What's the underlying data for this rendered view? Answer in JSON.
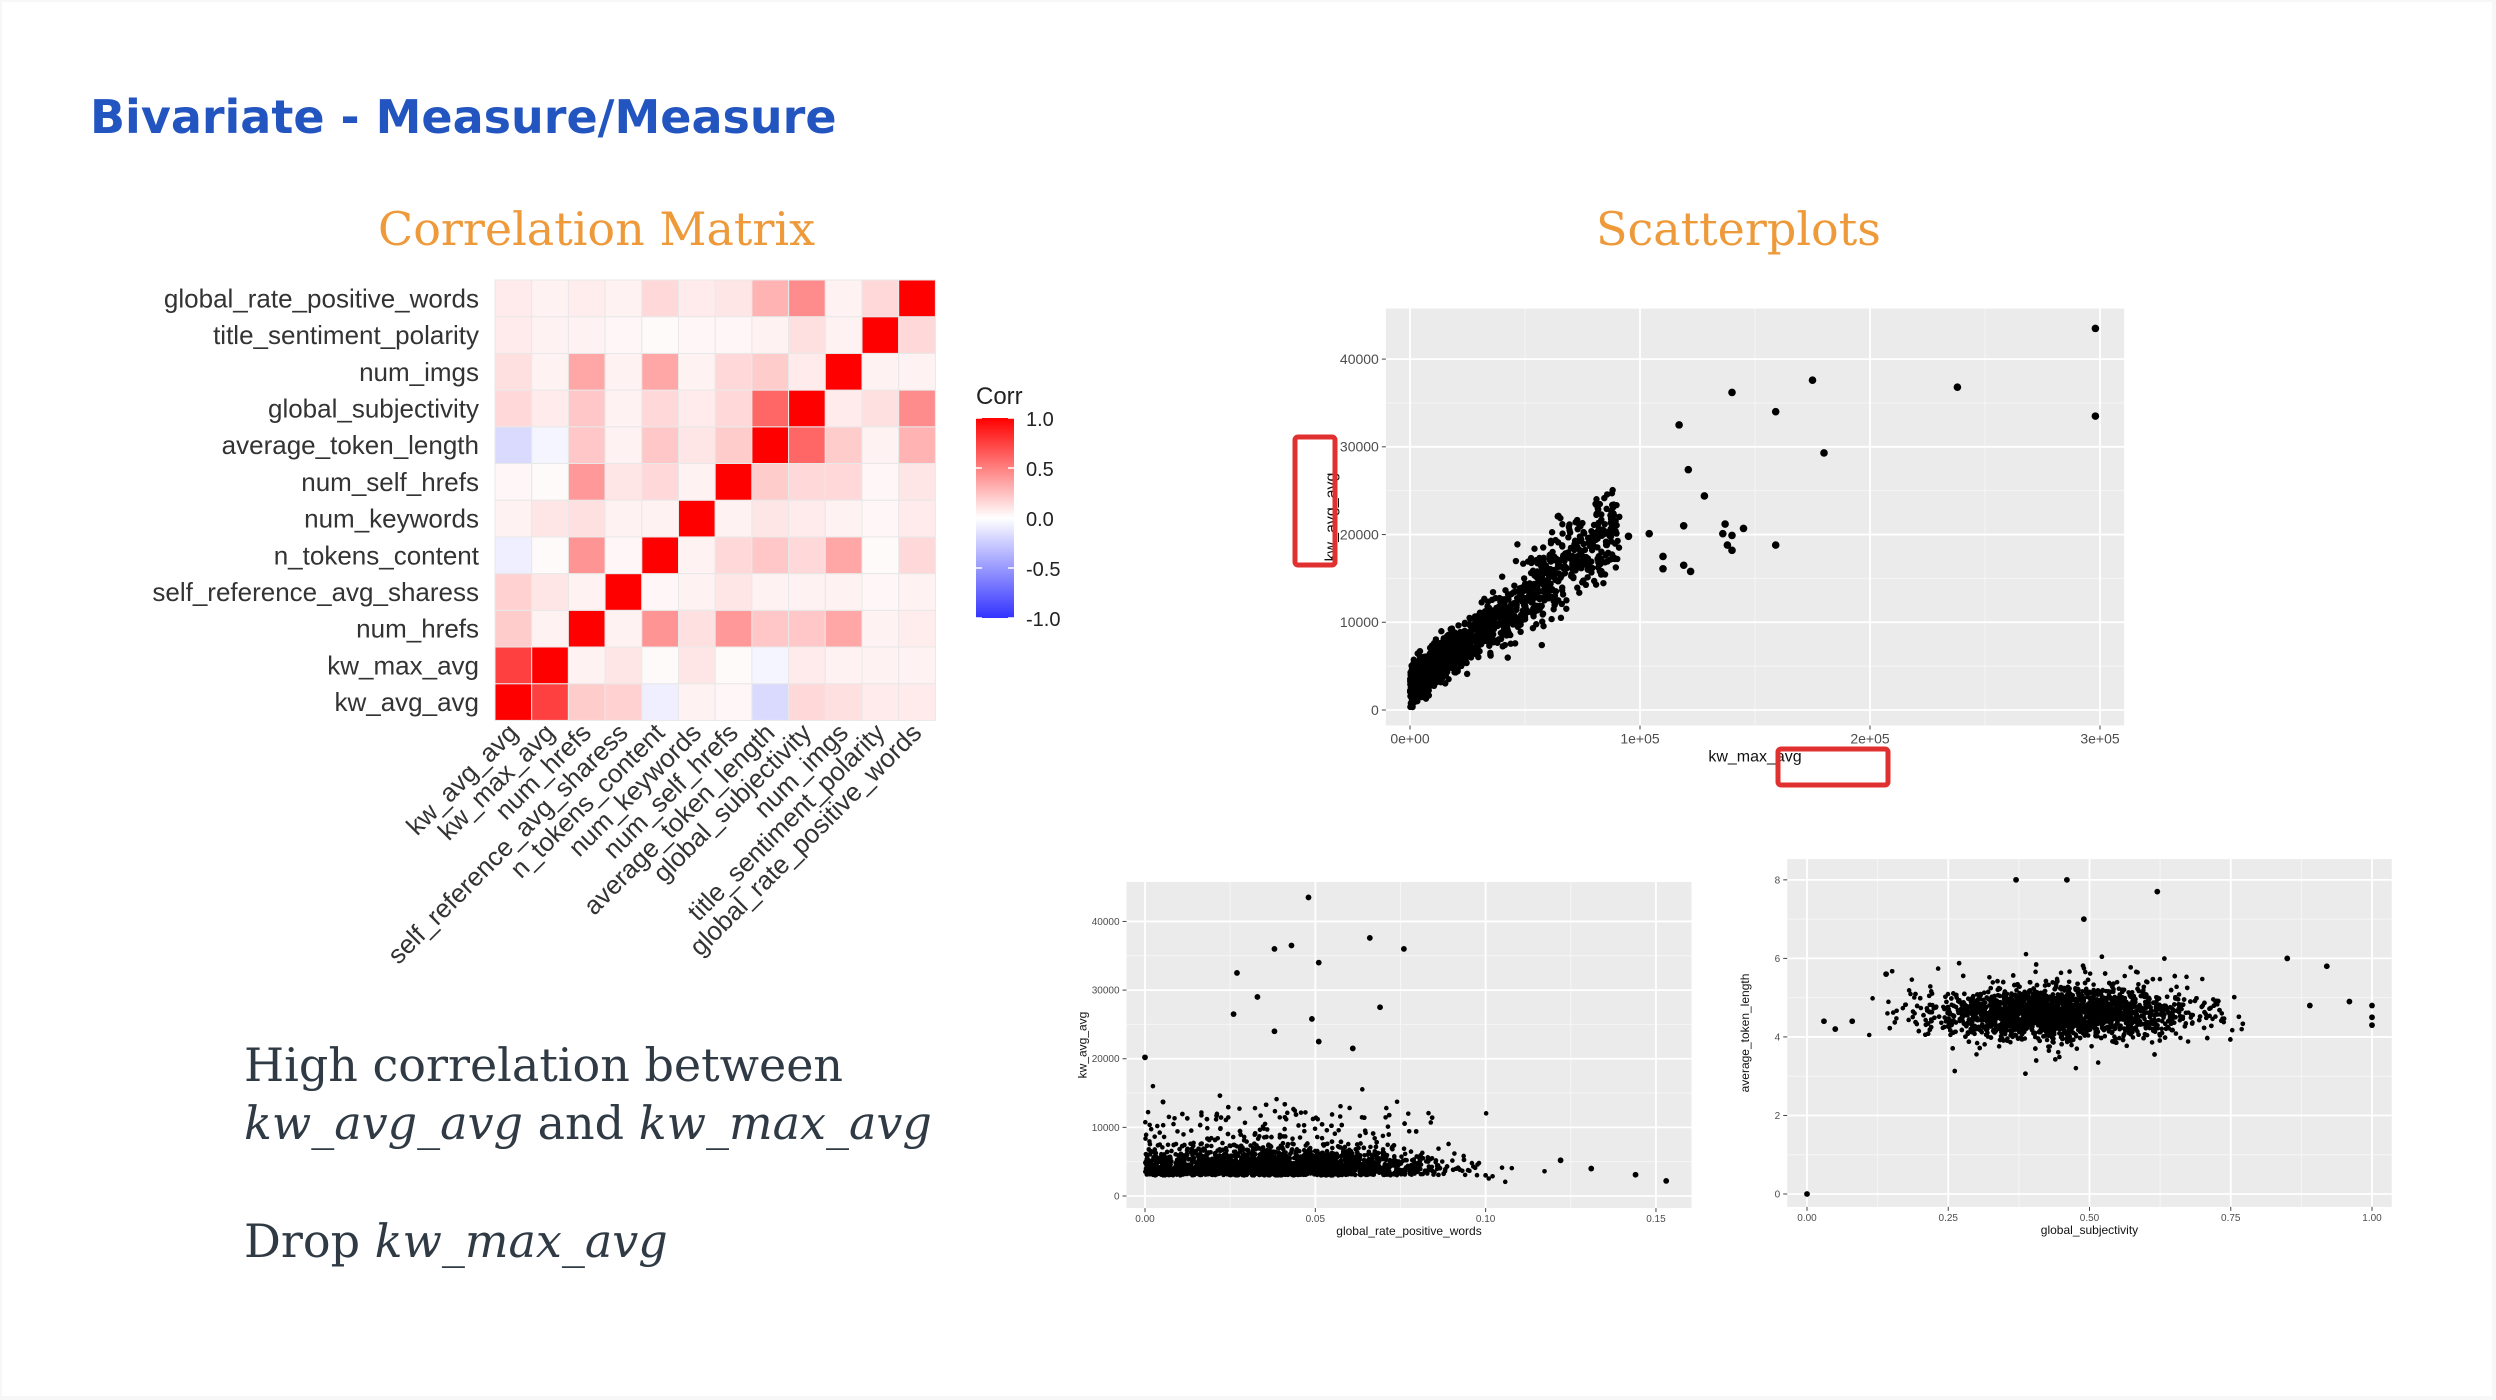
{
  "slide": {
    "title": "Bivariate - Measure/Measure",
    "corr_section_title": "Correlation Matrix",
    "scatter_section_title": "Scatterplots",
    "note_line1": "High correlation between",
    "note_var_a": "kw_avg_avg",
    "note_and": "and",
    "note_var_b": "kw_max_avg",
    "note_drop_prefix": "Drop",
    "note_drop_var": "kw_max_avg"
  },
  "colors": {
    "title": "#2355c0",
    "section": "#ee9a3a",
    "positive": "#ff0000",
    "negative": "#3333ff",
    "highlight": "#e03030"
  },
  "chart_data": [
    {
      "type": "heatmap",
      "variables": [
        "kw_avg_avg",
        "kw_max_avg",
        "num_hrefs",
        "self_reference_avg_sharess",
        "n_tokens_content",
        "num_keywords",
        "num_self_hrefs",
        "average_token_length",
        "global_subjectivity",
        "num_imgs",
        "title_sentiment_polarity",
        "global_rate_positive_words"
      ],
      "matrix": [
        [
          1.0,
          0.75,
          0.2,
          0.18,
          -0.08,
          0.05,
          0.03,
          -0.18,
          0.15,
          0.12,
          0.08,
          0.08
        ],
        [
          0.75,
          1.0,
          0.05,
          0.1,
          0.02,
          0.1,
          0.02,
          -0.05,
          0.08,
          0.05,
          0.05,
          0.05
        ],
        [
          0.2,
          0.05,
          1.0,
          0.05,
          0.42,
          0.12,
          0.4,
          0.22,
          0.22,
          0.35,
          0.05,
          0.07
        ],
        [
          0.18,
          0.1,
          0.05,
          1.0,
          0.03,
          0.05,
          0.1,
          0.05,
          0.05,
          0.05,
          0.03,
          0.05
        ],
        [
          -0.08,
          0.02,
          0.42,
          0.03,
          1.0,
          0.05,
          0.15,
          0.22,
          0.15,
          0.35,
          0.02,
          0.15
        ],
        [
          0.05,
          0.1,
          0.12,
          0.05,
          0.05,
          1.0,
          0.05,
          0.1,
          0.08,
          0.05,
          0.03,
          0.08
        ],
        [
          0.03,
          0.02,
          0.4,
          0.1,
          0.15,
          0.05,
          1.0,
          0.2,
          0.15,
          0.15,
          0.03,
          0.1
        ],
        [
          -0.18,
          -0.05,
          0.22,
          0.05,
          0.22,
          0.1,
          0.2,
          1.0,
          0.6,
          0.2,
          0.05,
          0.3
        ],
        [
          0.15,
          0.08,
          0.22,
          0.05,
          0.15,
          0.08,
          0.15,
          0.6,
          1.0,
          0.08,
          0.12,
          0.45
        ],
        [
          0.12,
          0.05,
          0.35,
          0.05,
          0.35,
          0.05,
          0.15,
          0.2,
          0.08,
          1.0,
          0.05,
          0.05
        ],
        [
          0.08,
          0.05,
          0.05,
          0.03,
          0.02,
          0.03,
          0.03,
          0.05,
          0.12,
          0.05,
          1.0,
          0.15
        ],
        [
          0.08,
          0.05,
          0.07,
          0.05,
          0.15,
          0.08,
          0.1,
          0.3,
          0.45,
          0.05,
          0.15,
          1.0
        ]
      ],
      "legend_title": "Corr",
      "legend_ticks": [
        "1.0",
        "0.5",
        "0.0",
        "-0.5",
        "-1.0"
      ],
      "legend_values": [
        1.0,
        0.5,
        0.0,
        -0.5,
        -1.0
      ]
    },
    {
      "type": "scatter",
      "xlabel": "kw_max_avg",
      "ylabel": "kw_avg_avg",
      "xlim": [
        0,
        300000
      ],
      "ylim": [
        0,
        44000
      ],
      "xticks": [
        0,
        100000,
        200000,
        300000
      ],
      "xtick_labels": [
        "0e+00",
        "1e+05",
        "2e+05",
        "3e+05"
      ],
      "yticks": [
        0,
        10000,
        20000,
        30000,
        40000
      ],
      "ytick_labels": [
        "0",
        "10000",
        "20000",
        "30000",
        "40000"
      ],
      "points": [
        [
          298000,
          43500
        ],
        [
          298000,
          33500
        ],
        [
          238000,
          36800
        ],
        [
          175000,
          37600
        ],
        [
          159000,
          34000
        ],
        [
          140000,
          36200
        ],
        [
          180000,
          29300
        ],
        [
          117000,
          32500
        ],
        [
          121000,
          27400
        ],
        [
          128000,
          24400
        ],
        [
          137000,
          21200
        ],
        [
          136000,
          20100
        ],
        [
          140000,
          19900
        ],
        [
          145000,
          20700
        ],
        [
          159000,
          18800
        ],
        [
          140000,
          18200
        ],
        [
          138000,
          18800
        ],
        [
          104000,
          20100
        ],
        [
          95000,
          19800
        ],
        [
          119000,
          21000
        ],
        [
          110000,
          17500
        ],
        [
          122000,
          15800
        ],
        [
          119000,
          16500
        ],
        [
          110000,
          16100
        ]
      ]
    },
    {
      "type": "scatter",
      "xlabel": "global_rate_positive_words",
      "ylabel": "kw_avg_avg",
      "xlim": [
        0,
        0.155
      ],
      "ylim": [
        0,
        44000
      ],
      "xticks": [
        0,
        0.05,
        0.1,
        0.15
      ],
      "xtick_labels": [
        "0.00",
        "0.05",
        "0.10",
        "0.15"
      ],
      "yticks": [
        0,
        10000,
        20000,
        30000,
        40000
      ],
      "ytick_labels": [
        "0",
        "10000",
        "20000",
        "30000",
        "40000"
      ],
      "points": [
        [
          0.048,
          43500
        ],
        [
          0.051,
          34000
        ],
        [
          0.043,
          36500
        ],
        [
          0.038,
          36000
        ],
        [
          0.066,
          37600
        ],
        [
          0.076,
          36000
        ],
        [
          0.027,
          32500
        ],
        [
          0.033,
          29000
        ],
        [
          0.069,
          27500
        ],
        [
          0.026,
          26500
        ],
        [
          0.049,
          25800
        ],
        [
          0.038,
          24000
        ],
        [
          0.051,
          22500
        ],
        [
          0.061,
          21500
        ],
        [
          0.0,
          20200
        ],
        [
          0.144,
          3100
        ],
        [
          0.153,
          2200
        ],
        [
          0.131,
          4000
        ],
        [
          0.122,
          5200
        ]
      ]
    },
    {
      "type": "scatter",
      "xlabel": "global_subjectivity",
      "ylabel": "average_token_length",
      "xlim": [
        0,
        1.0
      ],
      "ylim": [
        0,
        8.2
      ],
      "xticks": [
        0,
        0.25,
        0.5,
        0.75,
        1.0
      ],
      "xtick_labels": [
        "0.00",
        "0.25",
        "0.50",
        "0.75",
        "1.00"
      ],
      "yticks": [
        0,
        2,
        4,
        6,
        8
      ],
      "ytick_labels": [
        "0",
        "2",
        "4",
        "6",
        "8"
      ],
      "points": [
        [
          0.0,
          0.0
        ],
        [
          0.37,
          8.0
        ],
        [
          0.46,
          8.0
        ],
        [
          0.62,
          7.7
        ],
        [
          0.49,
          7.0
        ],
        [
          0.14,
          5.6
        ],
        [
          0.92,
          5.8
        ],
        [
          1.0,
          4.8
        ],
        [
          1.0,
          4.5
        ],
        [
          1.0,
          4.3
        ],
        [
          0.03,
          4.4
        ],
        [
          0.05,
          4.2
        ],
        [
          0.08,
          4.4
        ],
        [
          0.96,
          4.9
        ],
        [
          0.89,
          4.8
        ],
        [
          0.85,
          6.0
        ]
      ]
    }
  ]
}
